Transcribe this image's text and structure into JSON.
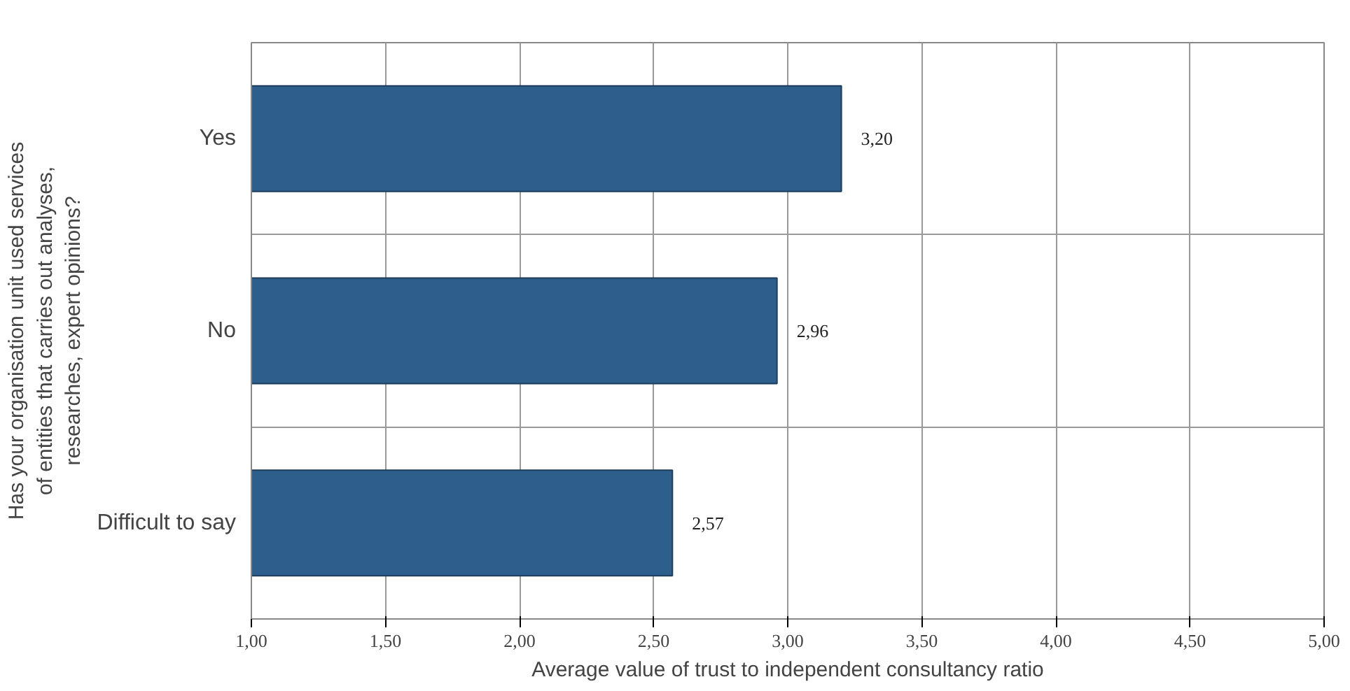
{
  "chart_data": {
    "type": "bar",
    "orientation": "horizontal",
    "categories": [
      "Yes",
      "No",
      "Difficult to say"
    ],
    "values": [
      3.2,
      2.96,
      2.57
    ],
    "value_labels": [
      "3,20",
      "2,96",
      "2,57"
    ],
    "color": "#2e5f8c",
    "xlim": [
      1.0,
      5.0
    ],
    "xticks": [
      {
        "value": 1.0,
        "label": "1,00"
      },
      {
        "value": 1.5,
        "label": "1,50"
      },
      {
        "value": 2.0,
        "label": "2,00"
      },
      {
        "value": 2.5,
        "label": "2,50"
      },
      {
        "value": 3.0,
        "label": "3,00"
      },
      {
        "value": 3.5,
        "label": "3,50"
      },
      {
        "value": 4.0,
        "label": "4,00"
      },
      {
        "value": 4.5,
        "label": "4,50"
      },
      {
        "value": 5.0,
        "label": "5,00"
      }
    ],
    "xlabel": "Average value of trust to independent consultancy ratio",
    "ylabel": "Has your organisation unit used services of entities that carries out analyses, researches, expert opinions?",
    "grid": true
  }
}
